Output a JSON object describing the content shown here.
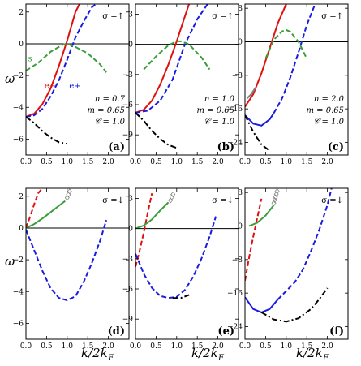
{
  "figure": {
    "ylabel": "ω",
    "xlabel": "k/2k_F"
  },
  "chart_data": [
    {
      "type": "line",
      "label": "(a)",
      "sigma": "σ =↑",
      "params": [
        "n = 0.7",
        "m = 0.65",
        "𝒞 = 1.0"
      ],
      "xlim": [
        0,
        2.5
      ],
      "ylim": [
        -7,
        2.5
      ],
      "xticks": [
        0.0,
        0.5,
        1.0,
        1.5,
        2.0
      ],
      "yticks": [
        2,
        0,
        -2,
        -4,
        -6
      ],
      "curve_labels": [
        {
          "text": "s",
          "color": "#3a9d3a",
          "x": 0.05,
          "y": -1.1
        },
        {
          "text": "e−",
          "color": "#e01010",
          "x": 0.45,
          "y": -2.8
        },
        {
          "text": "e+",
          "color": "#1a1ae0",
          "x": 1.05,
          "y": -2.8
        }
      ],
      "series": [
        {
          "name": "e−",
          "color": "#e01010",
          "style": "solid",
          "x": [
            0,
            0.2,
            0.4,
            0.6,
            0.8,
            1.0,
            1.2,
            1.3
          ],
          "y": [
            -4.6,
            -4.4,
            -3.8,
            -2.8,
            -1.4,
            0.2,
            2.0,
            2.5
          ]
        },
        {
          "name": "e+",
          "color": "#1a1ae0",
          "style": "dashed",
          "x": [
            0,
            0.2,
            0.4,
            0.6,
            0.8,
            1.0,
            1.2,
            1.4,
            1.6,
            1.7
          ],
          "y": [
            -4.6,
            -4.5,
            -4.1,
            -3.3,
            -2.3,
            -1.0,
            0.4,
            1.4,
            2.3,
            2.5
          ]
        },
        {
          "name": "s",
          "color": "#3a9d3a",
          "style": "dashed",
          "x": [
            0,
            0.3,
            0.6,
            0.9,
            1.0,
            1.2,
            1.5,
            1.8,
            1.95
          ],
          "y": [
            -1.7,
            -1.2,
            -0.5,
            -0.05,
            0.0,
            -0.2,
            -0.6,
            -1.3,
            -1.8
          ]
        },
        {
          "name": "",
          "color": "#000000",
          "style": "dashdot",
          "x": [
            0,
            0.2,
            0.4,
            0.6,
            0.8,
            1.0
          ],
          "y": [
            -4.6,
            -5.0,
            -5.5,
            -5.9,
            -6.2,
            -6.3
          ]
        }
      ]
    },
    {
      "type": "line",
      "label": "(b)",
      "sigma": "σ =↑",
      "params": [
        "n = 1.0",
        "m = 0.65",
        "𝒞 = 1.0"
      ],
      "xlim": [
        0,
        2.5
      ],
      "ylim": [
        -11,
        4
      ],
      "xticks": [
        0.0,
        0.5,
        1.0,
        1.5,
        2.0
      ],
      "yticks": [
        3,
        0,
        -3,
        -6,
        -9
      ],
      "series": [
        {
          "name": "e−",
          "color": "#e01010",
          "style": "solid",
          "x": [
            0,
            0.2,
            0.4,
            0.6,
            0.8,
            1.0,
            1.2,
            1.3
          ],
          "y": [
            -6.8,
            -6.5,
            -5.6,
            -4.0,
            -2.0,
            0.3,
            2.8,
            4.0
          ]
        },
        {
          "name": "e+",
          "color": "#1a1ae0",
          "style": "dashed",
          "x": [
            0,
            0.3,
            0.6,
            0.9,
            1.2,
            1.5,
            1.75
          ],
          "y": [
            -6.8,
            -6.6,
            -5.6,
            -3.5,
            0.0,
            2.5,
            4.0
          ]
        },
        {
          "name": "s",
          "color": "#3a9d3a",
          "style": "dashed",
          "x": [
            0.2,
            0.5,
            0.8,
            1.0,
            1.1,
            1.3,
            1.6,
            1.8
          ],
          "y": [
            -2.5,
            -1.2,
            -0.1,
            0.3,
            0.3,
            0.0,
            -1.3,
            -2.5
          ]
        },
        {
          "name": "",
          "color": "#000000",
          "style": "dashdot",
          "x": [
            0,
            0.2,
            0.4,
            0.6,
            0.8,
            1.0
          ],
          "y": [
            -6.8,
            -7.6,
            -8.6,
            -9.4,
            -10.0,
            -10.3
          ]
        }
      ]
    },
    {
      "type": "line",
      "label": "(c)",
      "sigma": "σ =↑",
      "params": [
        "n = 2.0",
        "m = 0.65",
        "𝒞 = 1.0"
      ],
      "xlim": [
        0,
        2.5
      ],
      "ylim": [
        -27,
        9
      ],
      "xticks": [
        0.0,
        0.5,
        1.0,
        1.5,
        2.0
      ],
      "yticks": [
        8,
        0,
        -8,
        -16,
        -24
      ],
      "series": [
        {
          "name": "e−",
          "color": "#e01010",
          "style": "solid",
          "x": [
            0,
            0.2,
            0.4,
            0.6,
            0.8,
            1.0
          ],
          "y": [
            -15.5,
            -12.5,
            -7.5,
            -1.5,
            4.5,
            9.0
          ]
        },
        {
          "name": "e+",
          "color": "#1a1ae0",
          "style": "solid",
          "x": [
            0,
            0.2,
            0.4,
            0.6,
            0.7
          ],
          "y": [
            -17.5,
            -19.5,
            -20.0,
            -18.5,
            -17.0
          ]
        },
        {
          "name": "e+",
          "color": "#1a1ae0",
          "style": "dashed",
          "x": [
            0.7,
            0.9,
            1.1,
            1.3,
            1.5,
            1.7
          ],
          "y": [
            -17.0,
            -13.5,
            -8.5,
            -2.5,
            4.0,
            9.0
          ]
        },
        {
          "name": "s",
          "color": "#3a9d3a",
          "style": "dashed",
          "x": [
            0.5,
            0.7,
            0.9,
            1.0,
            1.1,
            1.3,
            1.5
          ],
          "y": [
            -4.0,
            0.5,
            2.5,
            2.8,
            2.4,
            0.0,
            -4.0
          ]
        },
        {
          "name": "",
          "color": "#808080",
          "style": "solid",
          "x": [
            0.05,
            0.15,
            0.25
          ],
          "y": [
            -13.5,
            -12.5,
            -11.0
          ]
        },
        {
          "name": "",
          "color": "#000000",
          "style": "dashdot",
          "x": [
            0,
            0.2,
            0.4,
            0.6
          ],
          "y": [
            -17.5,
            -21.5,
            -24.5,
            -26.0
          ]
        }
      ]
    },
    {
      "type": "line",
      "label": "(d)",
      "sigma": "σ =↓",
      "xlim": [
        0,
        2.5
      ],
      "ylim": [
        -7,
        2.5
      ],
      "xticks": [
        0.0,
        0.5,
        1.0,
        1.5,
        2.0
      ],
      "yticks": [
        2,
        0,
        -2,
        -4,
        -6
      ],
      "series": [
        {
          "name": "",
          "color": "#e01010",
          "style": "dashed",
          "x": [
            0,
            0.1,
            0.2,
            0.3,
            0.4
          ],
          "y": [
            0.0,
            0.7,
            1.5,
            2.2,
            2.5
          ]
        },
        {
          "name": "",
          "color": "#3a9d3a",
          "style": "solid",
          "x": [
            0,
            0.2,
            0.4,
            0.6,
            0.8,
            0.95
          ],
          "y": [
            0.0,
            0.25,
            0.6,
            1.0,
            1.4,
            1.7
          ]
        },
        {
          "name": "",
          "color": "#1a1ae0",
          "style": "dashed",
          "x": [
            0,
            0.2,
            0.4,
            0.6,
            0.8,
            1.0,
            1.2,
            1.4,
            1.6,
            1.8,
            1.95
          ],
          "y": [
            -0.1,
            -1.4,
            -2.7,
            -3.8,
            -4.4,
            -4.55,
            -4.3,
            -3.4,
            -2.2,
            -0.8,
            0.5
          ]
        }
      ],
      "markers": [
        {
          "x": 1.0,
          "y": 1.9
        },
        {
          "x": 1.03,
          "y": 2.1
        },
        {
          "x": 1.06,
          "y": 2.3
        }
      ]
    },
    {
      "type": "line",
      "label": "(e)",
      "sigma": "σ =↓",
      "xlim": [
        0,
        2.5
      ],
      "ylim": [
        -11,
        4
      ],
      "xticks": [
        0.0,
        0.5,
        1.0,
        1.5,
        2.0
      ],
      "yticks": [
        3,
        0,
        -3,
        -6,
        -9
      ],
      "series": [
        {
          "name": "",
          "color": "#e01010",
          "style": "dashed",
          "x": [
            0,
            0.1,
            0.2,
            0.3,
            0.4
          ],
          "y": [
            -3.8,
            -2.2,
            -0.4,
            1.6,
            3.5
          ]
        },
        {
          "name": "",
          "color": "#3a9d3a",
          "style": "solid",
          "x": [
            0,
            0.2,
            0.4,
            0.6,
            0.8
          ],
          "y": [
            0.0,
            0.3,
            0.9,
            1.8,
            2.6
          ]
        },
        {
          "name": "",
          "color": "#1a1ae0",
          "style": "dashed",
          "x": [
            0,
            0.2,
            0.4,
            0.6,
            0.8,
            1.0,
            1.2,
            1.4,
            1.6,
            1.8,
            1.95
          ],
          "y": [
            -2.5,
            -4.5,
            -5.9,
            -6.7,
            -6.9,
            -6.8,
            -6.1,
            -4.8,
            -3.0,
            -0.8,
            1.2
          ]
        },
        {
          "name": "",
          "color": "#000000",
          "style": "dashdot",
          "x": [
            0.9,
            1.1,
            1.3
          ],
          "y": [
            -6.9,
            -6.9,
            -6.6
          ]
        }
      ],
      "markers": [
        {
          "x": 0.85,
          "y": 2.8
        },
        {
          "x": 0.88,
          "y": 3.1
        },
        {
          "x": 0.91,
          "y": 3.4
        }
      ]
    },
    {
      "type": "line",
      "label": "(f)",
      "sigma": "σ =↓",
      "xlim": [
        0,
        2.5
      ],
      "ylim": [
        -27,
        9
      ],
      "xticks": [
        0.0,
        0.5,
        1.0,
        1.5,
        2.0
      ],
      "yticks": [
        8,
        0,
        -8,
        -16,
        -24
      ],
      "series": [
        {
          "name": "",
          "color": "#e01010",
          "style": "dashed",
          "x": [
            0,
            0.1,
            0.2,
            0.3,
            0.4
          ],
          "y": [
            -13.0,
            -7.5,
            -2.5,
            2.0,
            6.5
          ]
        },
        {
          "name": "",
          "color": "#3a9d3a",
          "style": "solid",
          "x": [
            0.1,
            0.3,
            0.5,
            0.7
          ],
          "y": [
            0.0,
            0.8,
            2.5,
            5.0
          ]
        },
        {
          "name": "",
          "color": "#1a1ae0",
          "style": "solid",
          "x": [
            0,
            0.2,
            0.4,
            0.6,
            0.8
          ],
          "y": [
            -17.0,
            -19.8,
            -20.6,
            -19.8,
            -17.5
          ]
        },
        {
          "name": "",
          "color": "#1a1ae0",
          "style": "dashed",
          "x": [
            0.8,
            1.0,
            1.2,
            1.4,
            1.6,
            1.8,
            2.0,
            2.1
          ],
          "y": [
            -17.5,
            -15.5,
            -13.5,
            -10.5,
            -6.0,
            -1.0,
            5.0,
            9.0
          ]
        },
        {
          "name": "",
          "color": "#000000",
          "style": "dashdot",
          "x": [
            0.4,
            0.7,
            1.0,
            1.3,
            1.6,
            1.8,
            2.0
          ],
          "y": [
            -20.6,
            -22.3,
            -22.8,
            -22.0,
            -19.8,
            -17.5,
            -14.8
          ]
        }
      ],
      "markers": [
        {
          "x": 0.7,
          "y": 5.5
        },
        {
          "x": 0.72,
          "y": 6.2
        },
        {
          "x": 0.74,
          "y": 6.9
        },
        {
          "x": 0.76,
          "y": 7.6
        },
        {
          "x": 0.78,
          "y": 8.3
        }
      ]
    }
  ]
}
